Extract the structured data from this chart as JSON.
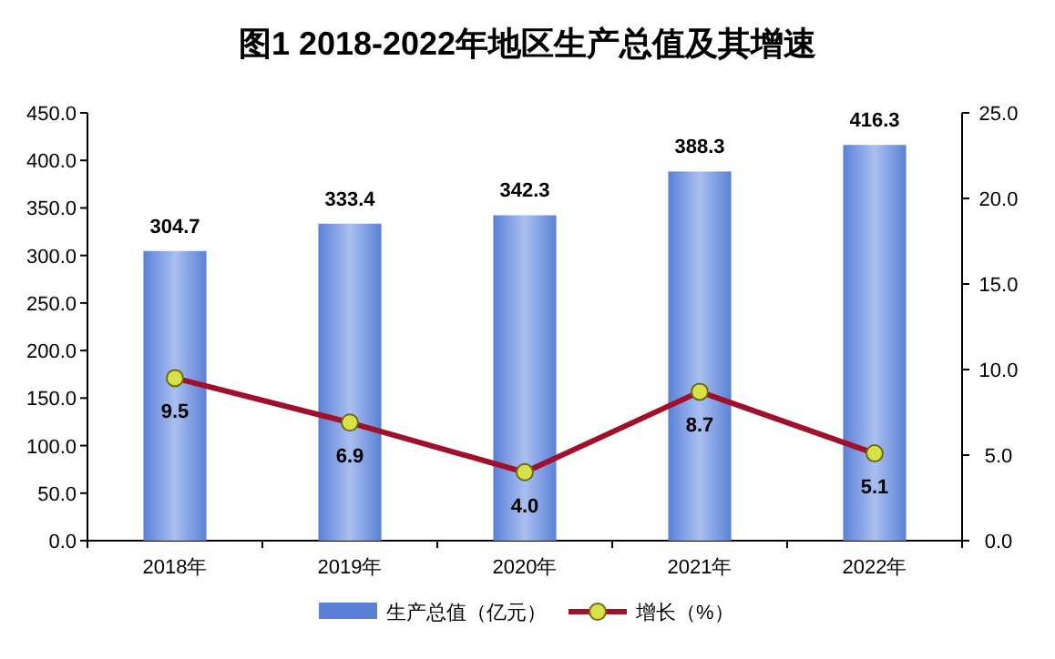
{
  "chart_data": {
    "type": "bar",
    "title": "图1  2018-2022年地区生产总值及其增速",
    "categories": [
      "2018年",
      "2019年",
      "2020年",
      "2021年",
      "2022年"
    ],
    "series": [
      {
        "name": "生产总值（亿元）",
        "color": "#5b80d6",
        "values": [
          304.7,
          333.4,
          342.3,
          388.3,
          416.3
        ]
      },
      {
        "name": "增长（%）",
        "type": "line",
        "axis": "y2",
        "color": "#a0102a",
        "marker": "circle",
        "line_style": "solid",
        "values": [
          9.5,
          6.9,
          4.0,
          8.7,
          5.1
        ],
        "value_labels": [
          "9.5",
          "6.9",
          "4.0",
          "8.7",
          "5.1"
        ]
      }
    ],
    "ylim": [
      0,
      450
    ],
    "yticks": [
      {
        "value": 0,
        "label": "0.0"
      },
      {
        "value": 50,
        "label": "50.0"
      },
      {
        "value": 100,
        "label": "100.0"
      },
      {
        "value": 150,
        "label": "150.0"
      },
      {
        "value": 200,
        "label": "200.0"
      },
      {
        "value": 250,
        "label": "250.0"
      },
      {
        "value": 300,
        "label": "300.0"
      },
      {
        "value": 350,
        "label": "350.0"
      },
      {
        "value": 400,
        "label": "400.0"
      },
      {
        "value": 450,
        "label": "450.0"
      }
    ],
    "y2lim": [
      0,
      25
    ],
    "y2ticks": [
      {
        "value": 0,
        "label": "0.0"
      },
      {
        "value": 5,
        "label": "5.0"
      },
      {
        "value": 10,
        "label": "10.0"
      },
      {
        "value": 15,
        "label": "15.0"
      },
      {
        "value": 20,
        "label": "20.0"
      },
      {
        "value": 25,
        "label": "25.0"
      }
    ],
    "data_labels": true,
    "grid": false,
    "legend": "bottom"
  }
}
